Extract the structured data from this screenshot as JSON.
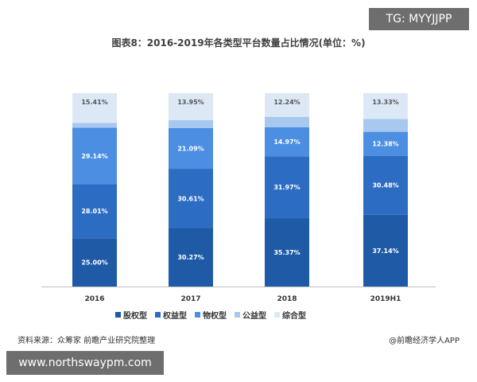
{
  "badges": {
    "top_right": "TG: MYYJJPP",
    "bottom_left": "www.northswaypm.com"
  },
  "chart_data": {
    "type": "bar",
    "stacked": true,
    "title": "图表8：2016-2019年各类型平台数量占比情况(单位：%)",
    "categories": [
      "2016",
      "2017",
      "2018",
      "2019H1"
    ],
    "series": [
      {
        "name": "股权型",
        "values": [
          25.0,
          30.27,
          35.37,
          37.14
        ],
        "color": "#1f5aa6",
        "show_labels": true
      },
      {
        "name": "权益型",
        "values": [
          28.01,
          30.61,
          31.97,
          30.48
        ],
        "color": "#2c6cc2",
        "show_labels": true
      },
      {
        "name": "物权型",
        "values": [
          29.14,
          21.09,
          14.97,
          12.38
        ],
        "color": "#4b8ee2",
        "show_labels": true
      },
      {
        "name": "公益型",
        "values": [
          2.44,
          4.08,
          5.45,
          6.67
        ],
        "color": "#a9c8ef",
        "show_labels": false
      },
      {
        "name": "综合型",
        "values": [
          15.41,
          13.95,
          12.24,
          13.33
        ],
        "color": "#dde8f6",
        "show_labels": true
      }
    ],
    "ylim": [
      0,
      100
    ],
    "grid": false,
    "legend_position": "bottom"
  },
  "footer": {
    "source": "资料来源：众筹家 前瞻产业研究院整理",
    "credit": "@前瞻经济学人APP"
  }
}
